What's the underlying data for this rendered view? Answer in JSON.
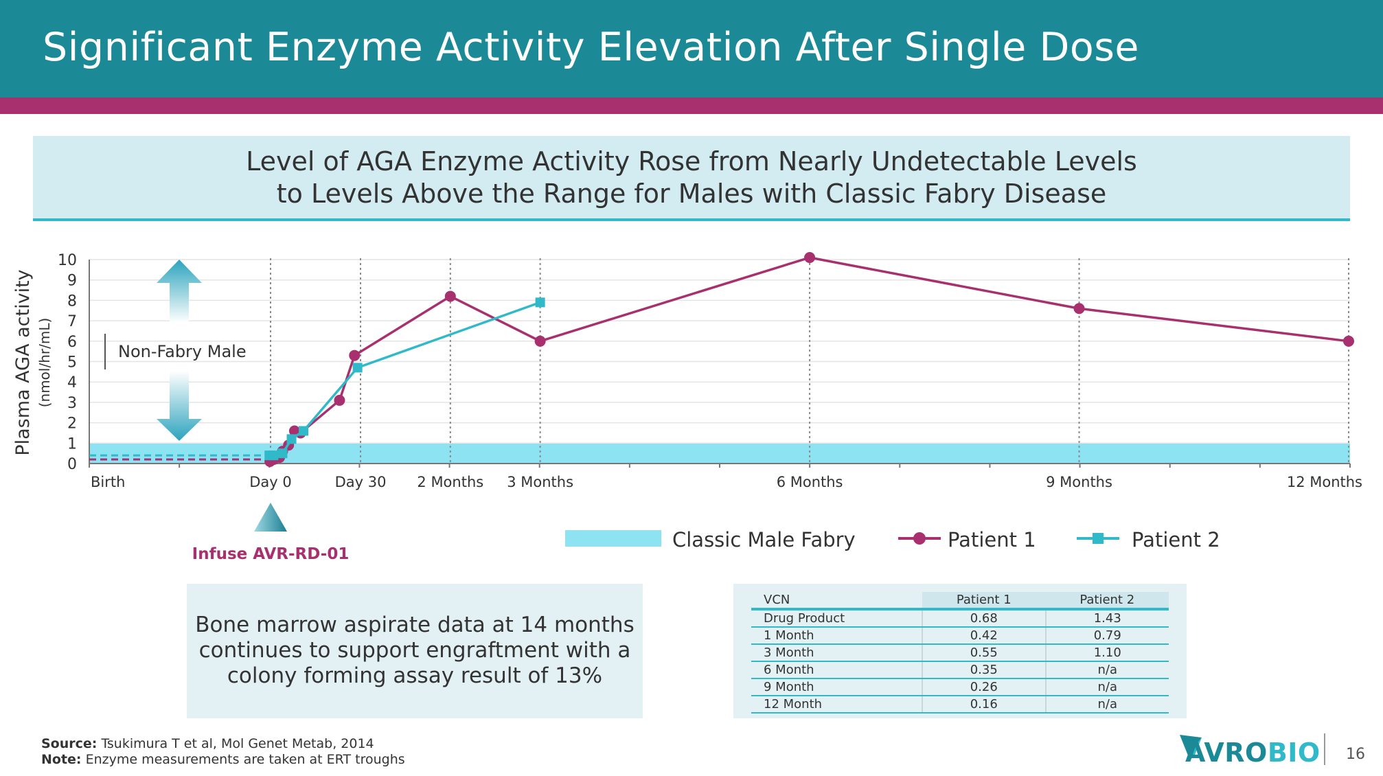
{
  "slide": {
    "title": "Significant Enzyme Activity Elevation After Single Dose",
    "subtitle_line1": "Level of AGA Enzyme Activity Rose from Nearly Undetectable Levels",
    "subtitle_line2": "to Levels Above the Range for Males with Classic Fabry Disease",
    "info_text": "Bone marrow aspirate data at 14 months continues to support engraftment with a colony forming assay result of 13%",
    "source_label": "Source:",
    "source_text": "Tsukimura T et al, Mol Genet Metab, 2014",
    "note_label": "Note:",
    "note_text": "Enzyme measurements are taken at ERT troughs",
    "logo_prefix": "AVRO",
    "logo_suffix": "BIO",
    "page_number": "16"
  },
  "chart_data": {
    "type": "line",
    "ylabel": "Plasma AGA activity",
    "ylabel_units": "(nmol/hr/mL)",
    "ylim": [
      0,
      10
    ],
    "y_ticks": [
      "0",
      "1",
      "2",
      "3",
      "4",
      "5",
      "6",
      "7",
      "8",
      "9",
      "10"
    ],
    "x_ticks": [
      {
        "label": "Birth",
        "x": -300
      },
      {
        "label": "Day 0",
        "x": 0
      },
      {
        "label": "Day 30",
        "x": 30
      },
      {
        "label": "2 Months",
        "x": 60
      },
      {
        "label": "3 Months",
        "x": 90
      },
      {
        "label": "6 Months",
        "x": 180
      },
      {
        "label": "9 Months",
        "x": 270
      },
      {
        "label": "12 Months",
        "x": 360
      }
    ],
    "dotted_gridlines_x": [
      0,
      30,
      60,
      90,
      180,
      270,
      360
    ],
    "band": {
      "name": "Classic Male Fabry",
      "y_min": 0,
      "y_max": 1,
      "color": "#8ee3f2"
    },
    "non_fabry_label": "Non-Fabry Male",
    "infusion_label": "Infuse AVR-RD-01",
    "series": [
      {
        "name": "Patient 1",
        "color": "#a8306e",
        "marker": "circle",
        "baseline": 0.2,
        "points": [
          [
            -1,
            0.1
          ],
          [
            1,
            0.2
          ],
          [
            3,
            0.3
          ],
          [
            4,
            0.6
          ],
          [
            6,
            0.9
          ],
          [
            8,
            1.6
          ],
          [
            10,
            1.5
          ],
          [
            23,
            3.1
          ],
          [
            28,
            5.3
          ],
          [
            60,
            8.2
          ],
          [
            90,
            6.0
          ],
          [
            180,
            10.1
          ],
          [
            270,
            7.6
          ],
          [
            360,
            6.0
          ]
        ]
      },
      {
        "name": "Patient 2",
        "color": "#2fb9c9",
        "marker": "square",
        "baseline": 0.4,
        "points": [
          [
            -2,
            0.4
          ],
          [
            1,
            0.4
          ],
          [
            4,
            0.5
          ],
          [
            7,
            1.2
          ],
          [
            11,
            1.6
          ],
          [
            29,
            4.7
          ],
          [
            90,
            7.9
          ]
        ]
      }
    ],
    "legend": [
      "Classic Male Fabry",
      "Patient 1",
      "Patient 2"
    ]
  },
  "vcn_table": {
    "headers": [
      "VCN",
      "Patient 1",
      "Patient 2"
    ],
    "rows": [
      {
        "label": "Drug Product",
        "p1": "0.68",
        "p2": "1.43"
      },
      {
        "label": "1 Month",
        "p1": "0.42",
        "p2": "0.79"
      },
      {
        "label": "3 Month",
        "p1": "0.55",
        "p2": "1.10"
      },
      {
        "label": "6 Month",
        "p1": "0.35",
        "p2": "n/a"
      },
      {
        "label": "9 Month",
        "p1": "0.26",
        "p2": "n/a"
      },
      {
        "label": "12 Month",
        "p1": "0.16",
        "p2": "n/a"
      }
    ]
  },
  "colors": {
    "header": "#1b8a96",
    "stripe": "#a8306e",
    "accent": "#2fb9c9",
    "band": "#8ee3f2"
  }
}
